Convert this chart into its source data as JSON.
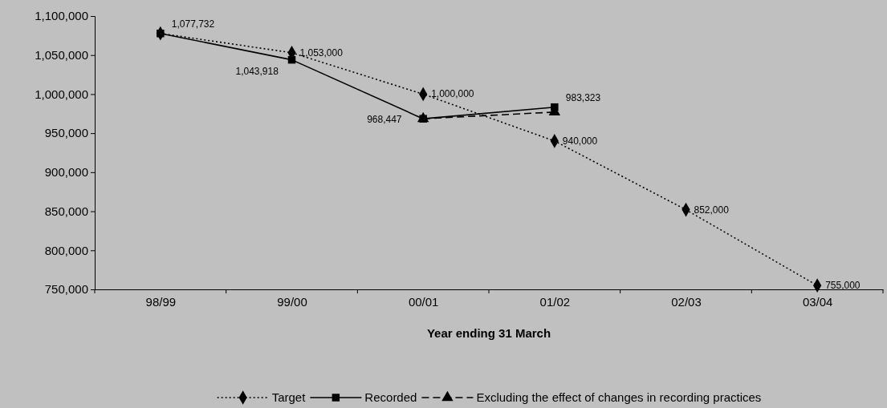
{
  "chart_data": {
    "type": "line",
    "xlabel": "Year ending 31 March",
    "categories": [
      "98/99",
      "99/00",
      "00/01",
      "01/02",
      "02/03",
      "03/04"
    ],
    "ylim": [
      750000,
      1100000
    ],
    "yticks": [
      {
        "value": 750000,
        "label": "750,000"
      },
      {
        "value": 800000,
        "label": "800,000"
      },
      {
        "value": 850000,
        "label": "850,000"
      },
      {
        "value": 900000,
        "label": "900,000"
      },
      {
        "value": 950000,
        "label": "950,000"
      },
      {
        "value": 1000000,
        "label": "1,000,000"
      },
      {
        "value": 1050000,
        "label": "1,050,000"
      },
      {
        "value": 1100000,
        "label": "1,100,000"
      }
    ],
    "grid": false,
    "legend": "bottom",
    "series": [
      {
        "name": "Target",
        "color": "#000000",
        "marker": "diamond",
        "line_style": "dotted",
        "values": [
          1077732,
          1053000,
          1000000,
          940000,
          852000,
          755000
        ],
        "value_labels": [
          null,
          "1,053,000",
          "1,000,000",
          "940,000",
          "852,000",
          "755,000"
        ]
      },
      {
        "name": "Recorded",
        "color": "#000000",
        "marker": "square",
        "line_style": "solid",
        "values": [
          1077732,
          1043918,
          968447,
          983323,
          null,
          null
        ],
        "value_labels": [
          "1,077,732",
          "1,043,918",
          "968,447",
          "983,323",
          null,
          null
        ]
      },
      {
        "name": "Excluding the effect of changes in recording practices",
        "color": "#000000",
        "marker": "triangle",
        "line_style": "dashed",
        "values": [
          null,
          null,
          968447,
          977000,
          null,
          null
        ],
        "value_labels": [
          null,
          null,
          null,
          null,
          null,
          null
        ]
      }
    ]
  }
}
